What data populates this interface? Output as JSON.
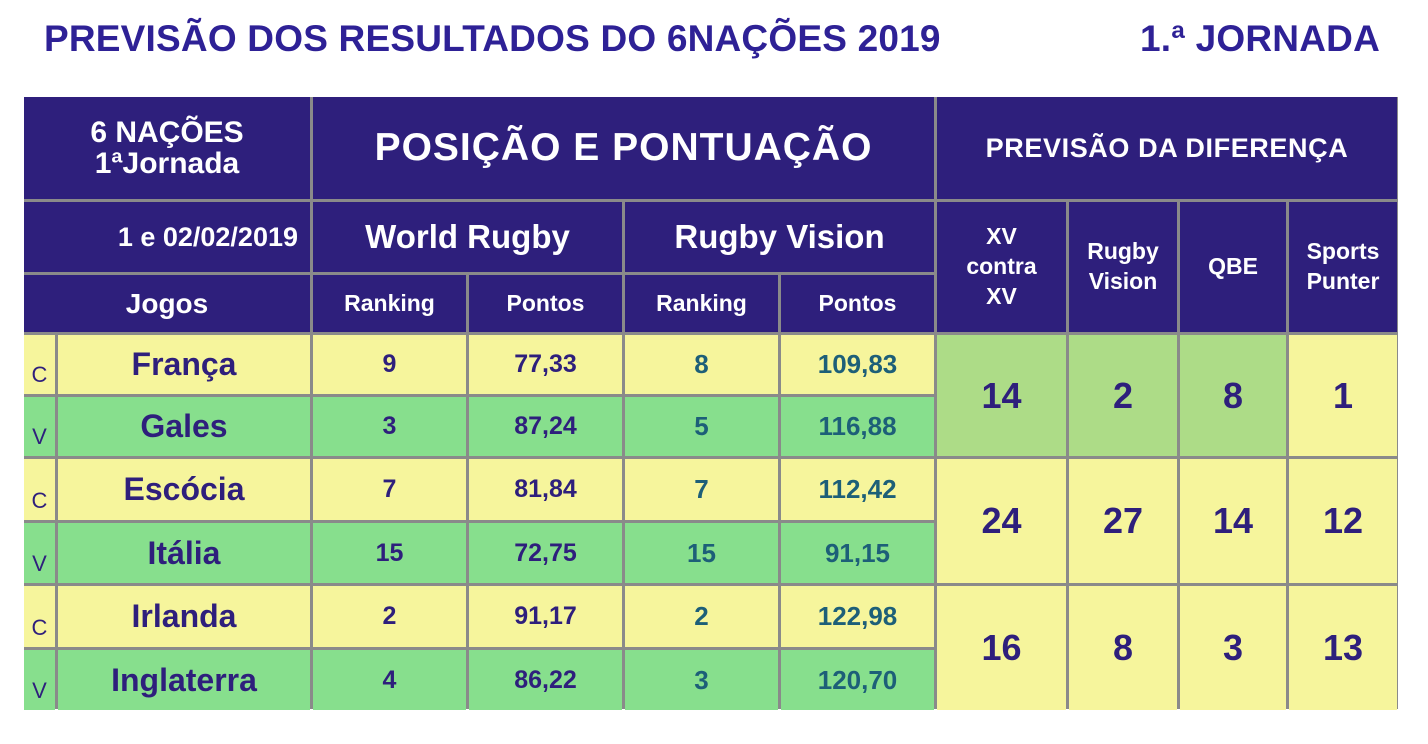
{
  "title": {
    "main": "PREVISÃO DOS RESULTADOS DO 6NAÇÕES 2019",
    "round": "1.ª JORNADA"
  },
  "header": {
    "competition_line1": "6 NAÇÕES",
    "competition_line2": "1ªJornada",
    "position_points": "POSIÇÃO E PONTUAÇÃO",
    "prediction_diff": "PREVISÃO DA DIFERENÇA",
    "date": "1 e 02/02/2019",
    "world_rugby": "World Rugby",
    "rugby_vision": "Rugby Vision",
    "jogos": "Jogos",
    "wr_ranking": "Ranking",
    "wr_pontos": "Pontos",
    "rv_ranking": "Ranking",
    "rv_pontos": "Pontos",
    "pred_xv_1": "XV",
    "pred_xv_2": "contra",
    "pred_xv_3": "XV",
    "pred_rv_1": "Rugby",
    "pred_rv_2": "Vision",
    "pred_qbe": "QBE",
    "pred_sp_1": "Sports",
    "pred_sp_2": "Punter"
  },
  "matches": [
    {
      "home": {
        "tag": "C",
        "team": "França",
        "wr_rank": "9",
        "wr_pts": "77,33",
        "rv_rank": "8",
        "rv_pts": "109,83"
      },
      "away": {
        "tag": "V",
        "team": "Gales",
        "wr_rank": "3",
        "wr_pts": "87,24",
        "rv_rank": "5",
        "rv_pts": "116,88"
      },
      "pred": {
        "xv": "14",
        "rv": "2",
        "qbe": "8",
        "sp": "1"
      }
    },
    {
      "home": {
        "tag": "C",
        "team": "Escócia",
        "wr_rank": "7",
        "wr_pts": "81,84",
        "rv_rank": "7",
        "rv_pts": "112,42"
      },
      "away": {
        "tag": "V",
        "team": "Itália",
        "wr_rank": "15",
        "wr_pts": "72,75",
        "rv_rank": "15",
        "rv_pts": "91,15"
      },
      "pred": {
        "xv": "24",
        "rv": "27",
        "qbe": "14",
        "sp": "12"
      }
    },
    {
      "home": {
        "tag": "C",
        "team": "Irlanda",
        "wr_rank": "2",
        "wr_pts": "91,17",
        "rv_rank": "2",
        "rv_pts": "122,98"
      },
      "away": {
        "tag": "V",
        "team": "Inglaterra",
        "wr_rank": "4",
        "wr_pts": "86,22",
        "rv_rank": "3",
        "rv_pts": "120,70"
      },
      "pred": {
        "xv": "16",
        "rv": "8",
        "qbe": "3",
        "sp": "13"
      }
    }
  ],
  "colors": {
    "header_bg": "#2e1f7c",
    "title_text": "#2e2196",
    "row_yellow": "#f6f59c",
    "row_green": "#87df8d",
    "pred_light_green": "#addc87"
  }
}
